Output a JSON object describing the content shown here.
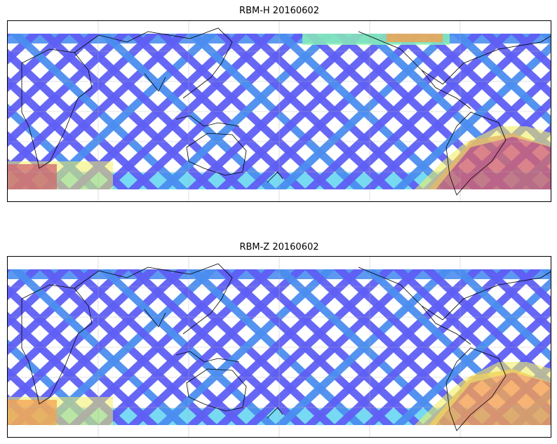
{
  "panels": [
    {
      "title": "RBM-H 20160602",
      "colormap": "jet",
      "color_stops": [
        "#5f5ff5",
        "#4b8ef0",
        "#5fd4f0",
        "#8cf5b4",
        "#f0f064",
        "#f5a050",
        "#d2646e"
      ],
      "hot_regions": [
        "south-west-edge",
        "south-east-america",
        "north-pacific-strip"
      ]
    },
    {
      "title": "RBM-Z 20160602",
      "colormap": "jet",
      "color_stops": [
        "#5f5ff5",
        "#4b8ef0",
        "#5fd4f0",
        "#8cf5b4",
        "#f0f064",
        "#f5a050"
      ],
      "hot_regions": [
        "south-west-edge",
        "south-east-america"
      ]
    }
  ]
}
